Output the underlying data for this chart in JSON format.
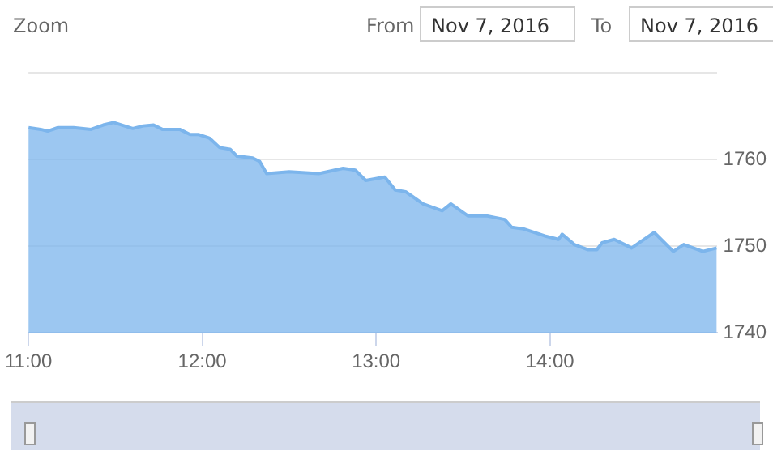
{
  "chart_data": {
    "type": "area",
    "annotations": [
      "Zoom",
      "From",
      "Nov 7, 2016",
      "To",
      "Nov 7, 2016"
    ],
    "x": [
      11.0,
      11.07,
      11.11,
      11.17,
      11.26,
      11.36,
      11.43,
      11.49,
      11.6,
      11.66,
      11.72,
      11.77,
      11.87,
      11.93,
      11.98,
      12.04,
      12.1,
      12.16,
      12.2,
      12.29,
      12.33,
      12.37,
      12.5,
      12.67,
      12.81,
      12.88,
      12.94,
      13.05,
      13.11,
      13.17,
      13.27,
      13.38,
      13.43,
      13.53,
      13.64,
      13.74,
      13.78,
      13.85,
      13.97,
      14.05,
      14.07,
      14.14,
      14.22,
      14.27,
      14.3,
      14.37,
      14.47,
      14.6,
      14.64,
      14.71,
      14.77,
      14.88,
      14.96
    ],
    "series": [
      {
        "color": "#7cb5ec",
        "values": [
          1763.7,
          1763.5,
          1763.3,
          1763.7,
          1763.7,
          1763.5,
          1764.0,
          1764.3,
          1763.6,
          1763.9,
          1764.0,
          1763.5,
          1763.5,
          1762.9,
          1762.9,
          1762.5,
          1761.4,
          1761.2,
          1760.4,
          1760.2,
          1759.8,
          1758.4,
          1758.6,
          1758.4,
          1759.0,
          1758.8,
          1757.6,
          1758.0,
          1756.5,
          1756.3,
          1754.9,
          1754.1,
          1754.9,
          1753.5,
          1753.5,
          1753.1,
          1752.2,
          1752.0,
          1751.2,
          1750.8,
          1751.4,
          1750.2,
          1749.6,
          1749.6,
          1750.4,
          1750.8,
          1749.8,
          1751.6,
          1750.8,
          1749.4,
          1750.2,
          1749.4,
          1749.8
        ]
      }
    ],
    "xlim": [
      11,
      14.96
    ],
    "xticks": [
      {
        "value": 11,
        "label": "11:00"
      },
      {
        "value": 12,
        "label": "12:00"
      },
      {
        "value": 13,
        "label": "13:00"
      },
      {
        "value": 14,
        "label": "14:00"
      }
    ],
    "ylim": [
      1740,
      1770
    ],
    "yticks": [
      1740,
      1750,
      1760,
      {
        "value": 1770,
        "label": null
      }
    ],
    "grid": "y",
    "legend": false
  }
}
